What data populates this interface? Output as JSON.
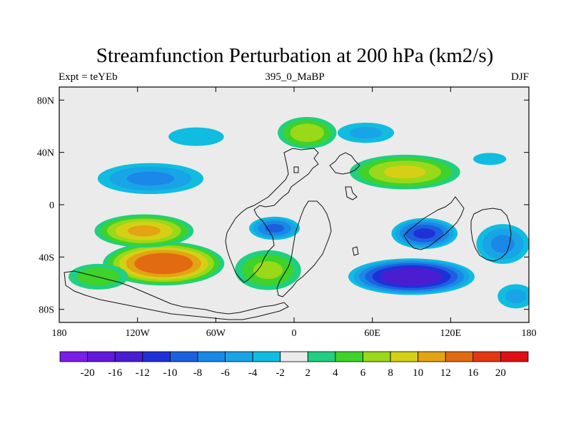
{
  "chart_data": {
    "type": "heatmap",
    "title": "Streamfunction Perturbation at 200 hPa (km2/s)",
    "left_label": "Expt = teYEb",
    "center_label": "395_0_MaBP",
    "right_label": "DJF",
    "x_range": [
      -180,
      180
    ],
    "y_range": [
      -90,
      90
    ],
    "x_ticks": [
      {
        "value": -180,
        "label": "180"
      },
      {
        "value": -120,
        "label": "120W"
      },
      {
        "value": -60,
        "label": "60W"
      },
      {
        "value": 0,
        "label": "0"
      },
      {
        "value": 60,
        "label": "60E"
      },
      {
        "value": 120,
        "label": "120E"
      },
      {
        "value": 180,
        "label": "180"
      }
    ],
    "y_ticks": [
      {
        "value": 80,
        "label": "80N"
      },
      {
        "value": 40,
        "label": "40N"
      },
      {
        "value": 0,
        "label": "0"
      },
      {
        "value": -40,
        "label": "40S"
      },
      {
        "value": -80,
        "label": "80S"
      }
    ],
    "colorbar": {
      "levels": [
        "-20",
        "-16",
        "-12",
        "-10",
        "-8",
        "-6",
        "-4",
        "-2",
        "2",
        "4",
        "6",
        "8",
        "10",
        "12",
        "16",
        "20"
      ],
      "colors": [
        "#7a1ee8",
        "#6418dc",
        "#4a1ed0",
        "#2030d8",
        "#1c60e0",
        "#1a88e6",
        "#18a4e6",
        "#10bce0",
        "#ebebeb",
        "#20cf80",
        "#3fd22a",
        "#9ad81a",
        "#d6d014",
        "#e2a412",
        "#e26a10",
        "#e23814",
        "#e00f14"
      ]
    },
    "background_color": "#ebebeb",
    "anomalies": [
      {
        "lon": -100,
        "lat": -45,
        "value": 14,
        "rx": 50,
        "ry": 18
      },
      {
        "lon": -115,
        "lat": -20,
        "value": 10,
        "rx": 42,
        "ry": 14
      },
      {
        "lon": -20,
        "lat": -50,
        "value": 6,
        "rx": 30,
        "ry": 18
      },
      {
        "lon": -150,
        "lat": -55,
        "value": 5,
        "rx": 28,
        "ry": 12
      },
      {
        "lon": -110,
        "lat": 20,
        "value": -6,
        "rx": 48,
        "ry": 14
      },
      {
        "lon": -15,
        "lat": -18,
        "value": -8,
        "rx": 22,
        "ry": 10
      },
      {
        "lon": 90,
        "lat": -55,
        "value": -14,
        "rx": 52,
        "ry": 15
      },
      {
        "lon": 100,
        "lat": -22,
        "value": -10,
        "rx": 28,
        "ry": 13
      },
      {
        "lon": 55,
        "lat": 55,
        "value": -4,
        "rx": 28,
        "ry": 10
      },
      {
        "lon": -75,
        "lat": 52,
        "value": -3,
        "rx": 30,
        "ry": 10
      },
      {
        "lon": 10,
        "lat": 55,
        "value": 7,
        "rx": 26,
        "ry": 14
      },
      {
        "lon": 85,
        "lat": 25,
        "value": 8,
        "rx": 48,
        "ry": 15
      },
      {
        "lon": 160,
        "lat": -30,
        "value": -6,
        "rx": 24,
        "ry": 18
      },
      {
        "lon": 150,
        "lat": 35,
        "value": -2,
        "rx": 22,
        "ry": 8
      },
      {
        "lon": 170,
        "lat": -70,
        "value": -4,
        "rx": 18,
        "ry": 12
      }
    ]
  }
}
